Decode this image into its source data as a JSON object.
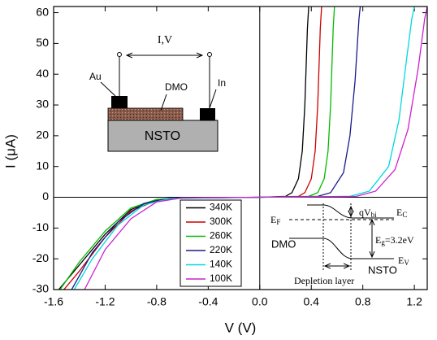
{
  "chart_data": {
    "type": "line",
    "xlabel": "V (V)",
    "ylabel": "I (μA)",
    "xlim": [
      -1.6,
      1.3
    ],
    "ylim": [
      -30,
      62
    ],
    "xticks": [
      -1.6,
      -1.2,
      -0.8,
      -0.4,
      {
        "value": 0,
        "label": "0.0"
      },
      0.4,
      0.8,
      1.2
    ],
    "yticks": [
      -30,
      -20,
      -10,
      0,
      10,
      20,
      30,
      40,
      50,
      60
    ],
    "legend": "lower center",
    "series": [
      {
        "name": "340K",
        "color": "#000000",
        "x": [
          -1.56,
          -1.4,
          -1.2,
          -1.0,
          -0.8,
          -0.6,
          0,
          0.2,
          0.25,
          0.3,
          0.33,
          0.35,
          0.37,
          0.38
        ],
        "values": [
          -30,
          -22,
          -12,
          -4,
          -0.8,
          -0.2,
          0,
          0.3,
          1.5,
          6,
          15,
          30,
          55,
          62
        ]
      },
      {
        "name": "300K",
        "color": "#cc0000",
        "x": [
          -1.52,
          -1.4,
          -1.2,
          -1.0,
          -0.8,
          -0.6,
          0,
          0.3,
          0.35,
          0.4,
          0.43,
          0.45,
          0.47,
          0.48
        ],
        "values": [
          -30,
          -24,
          -13,
          -4.5,
          -1,
          -0.2,
          0,
          0.3,
          1.5,
          6,
          15,
          30,
          55,
          62
        ]
      },
      {
        "name": "260K",
        "color": "#00bb00",
        "x": [
          -1.55,
          -1.4,
          -1.2,
          -1.0,
          -0.8,
          -0.6,
          0,
          0.38,
          0.45,
          0.5,
          0.53,
          0.55,
          0.57,
          0.58
        ],
        "values": [
          -30,
          -21,
          -11,
          -3.5,
          -0.7,
          -0.2,
          0,
          0.3,
          1.5,
          6,
          15,
          30,
          55,
          62
        ]
      },
      {
        "name": "220K",
        "color": "#1a1a8c",
        "x": [
          -1.46,
          -1.3,
          -1.1,
          -0.9,
          -0.7,
          0,
          0.45,
          0.55,
          0.65,
          0.7,
          0.74,
          0.77,
          0.78
        ],
        "values": [
          -30,
          -18,
          -8,
          -2,
          -0.3,
          0,
          0.3,
          1.5,
          8,
          20,
          38,
          58,
          62
        ]
      },
      {
        "name": "140K",
        "color": "#00d8e0",
        "x": [
          -1.44,
          -1.3,
          -1.1,
          -0.9,
          -0.7,
          0,
          0.7,
          0.85,
          1.0,
          1.08,
          1.14,
          1.18,
          1.2
        ],
        "values": [
          -30,
          -20,
          -9,
          -2.5,
          -0.4,
          0,
          0.3,
          2,
          10,
          25,
          45,
          58,
          62
        ]
      },
      {
        "name": "100K",
        "color": "#cc22cc",
        "x": [
          -1.36,
          -1.2,
          -1.0,
          -0.8,
          -0.6,
          0,
          0.75,
          0.9,
          1.05,
          1.15,
          1.23,
          1.28,
          1.3
        ],
        "values": [
          -30,
          -17,
          -7,
          -1.5,
          -0.2,
          0,
          0.3,
          2,
          9,
          22,
          42,
          58,
          62
        ]
      }
    ],
    "inset_device": {
      "signal": "I,V",
      "top_contact": "Au",
      "film": "DMO",
      "side_contact": "In",
      "substrate": "NSTO"
    },
    "inset_band": {
      "barrier": "qV",
      "barrier_sub": "bi",
      "ec": "E",
      "ec_sub": "C",
      "ef": "E",
      "ef_sub": "F",
      "eg": "E",
      "eg_sub": "g",
      "eg_value": "=3.2eV",
      "left": "DMO",
      "right": "NSTO",
      "ev": "E",
      "ev_sub": "V",
      "region": "Depletion layer"
    }
  }
}
